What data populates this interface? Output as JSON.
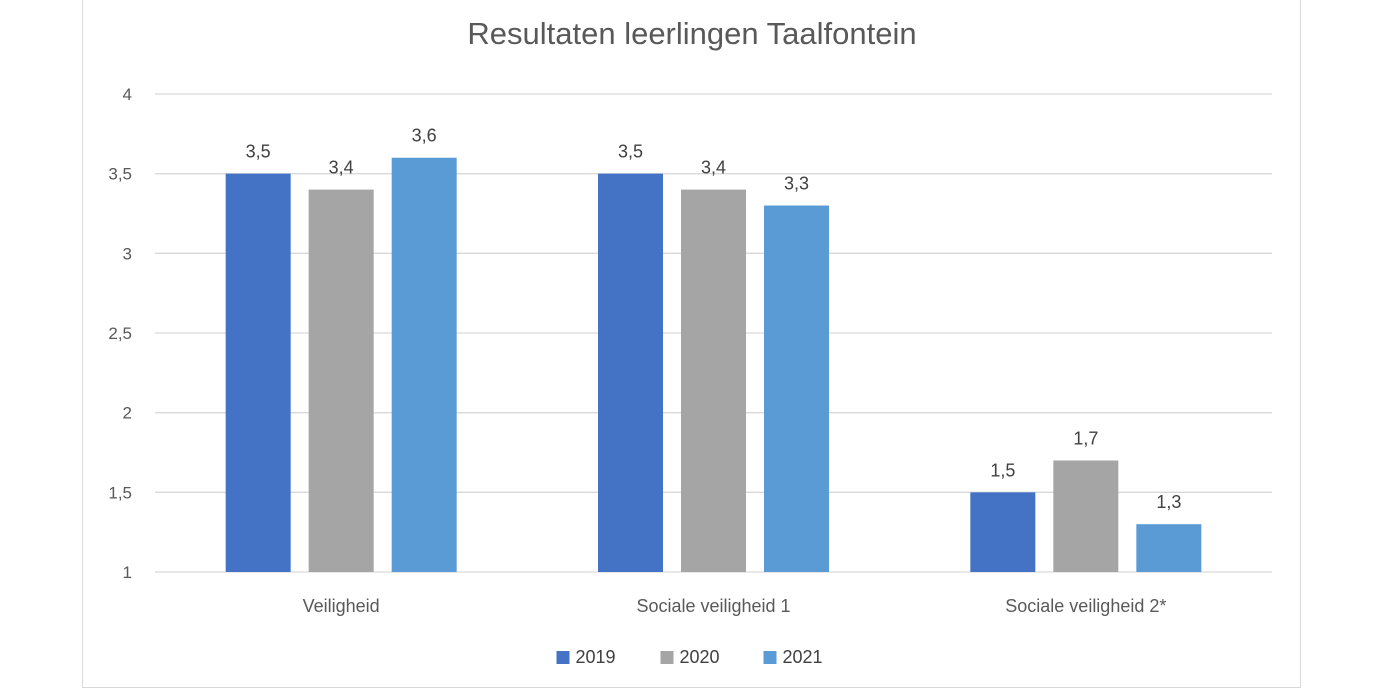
{
  "chart_data": {
    "type": "bar",
    "title": "Resultaten leerlingen Taalfontein",
    "xlabel": "",
    "ylabel": "",
    "categories": [
      "Veiligheid",
      "Sociale veiligheid 1",
      "Sociale veiligheid 2*"
    ],
    "series": [
      {
        "name": "2019",
        "color": "#4472c4",
        "values": [
          3.5,
          3.5,
          1.5
        ],
        "labels": [
          "3,5",
          "3,5",
          "1,5"
        ]
      },
      {
        "name": "2020",
        "color": "#a5a5a5",
        "values": [
          3.4,
          3.4,
          1.7
        ],
        "labels": [
          "3,4",
          "3,4",
          "1,7"
        ]
      },
      {
        "name": "2021",
        "color": "#5b9bd5",
        "values": [
          3.6,
          3.3,
          1.3
        ],
        "labels": [
          "3,6",
          "3,3",
          "1,3"
        ]
      }
    ],
    "ylim": [
      1,
      4
    ],
    "yticks": [
      1,
      1.5,
      2,
      2.5,
      3,
      3.5,
      4
    ],
    "ytick_labels": [
      "1",
      "1,5",
      "2",
      "2,5",
      "3",
      "3,5",
      "4"
    ],
    "grid": true,
    "legend_position": "bottom"
  }
}
